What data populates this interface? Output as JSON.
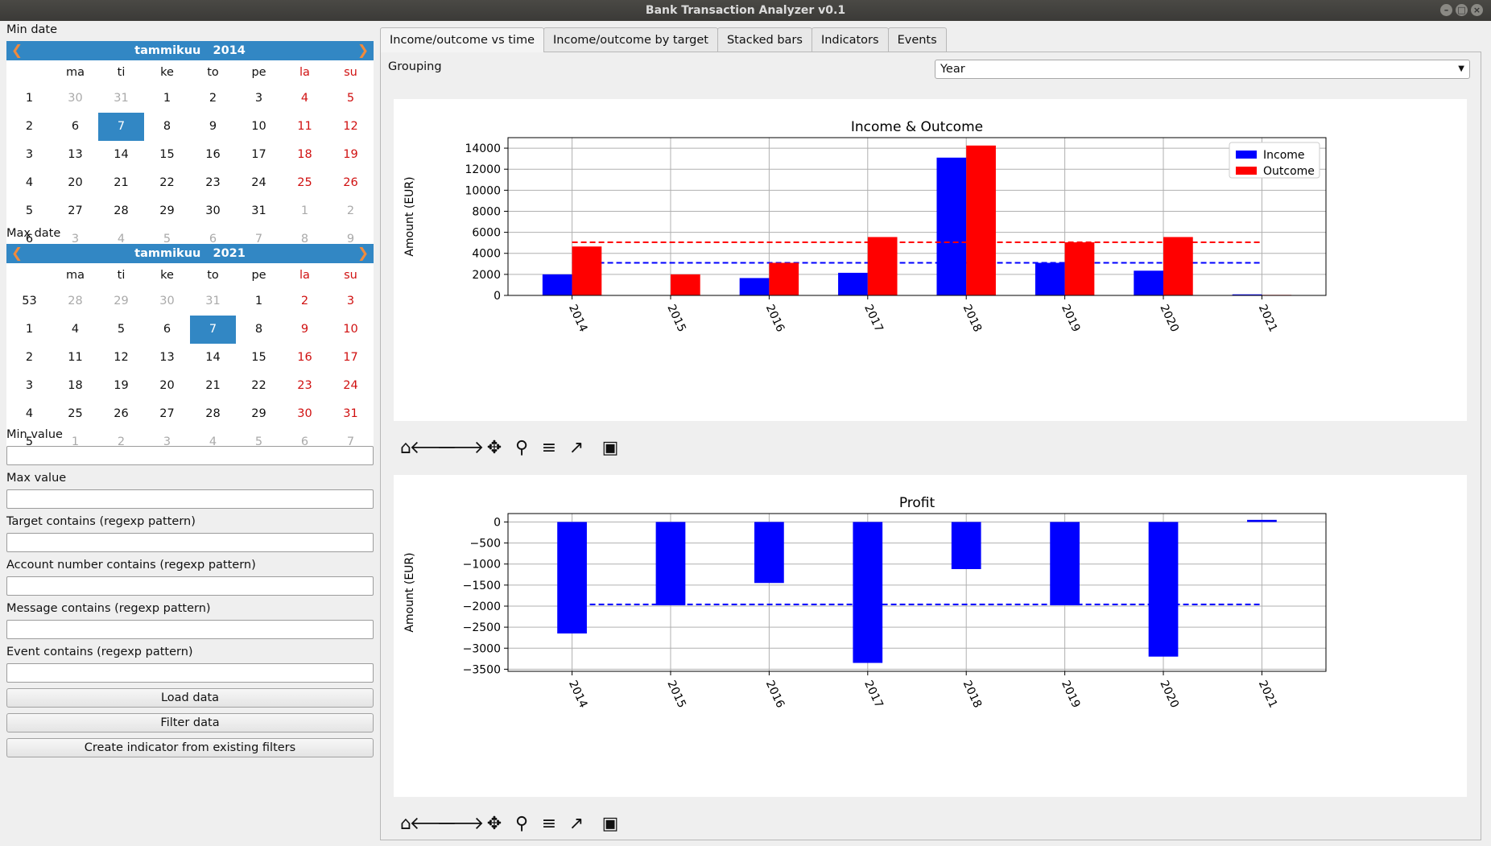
{
  "window": {
    "title": "Bank Transaction Analyzer v0.1"
  },
  "left": {
    "min_date_label": "Min date",
    "max_date_label": "Max date",
    "min_value_label": "Min value",
    "max_value_label": "Max value",
    "target_label": "Target contains (regexp pattern)",
    "account_label": "Account number contains (regexp pattern)",
    "message_label": "Message contains (regexp pattern)",
    "event_label": "Event contains (regexp pattern)",
    "load_button": "Load data",
    "filter_button": "Filter data",
    "create_indicator_button": "Create indicator from existing filters"
  },
  "calendars": {
    "min": {
      "month": "tammikuu",
      "year": "2014",
      "weekday_headers": [
        "ma",
        "ti",
        "ke",
        "to",
        "pe",
        "la",
        "su"
      ],
      "weeks": [
        {
          "wk": "1",
          "days": [
            [
              "30",
              "dim"
            ],
            [
              "31",
              "dim"
            ],
            [
              "1",
              "wk"
            ],
            [
              "2",
              "wk"
            ],
            [
              "3",
              "wk"
            ],
            [
              "4",
              "we"
            ],
            [
              "5",
              "we"
            ]
          ]
        },
        {
          "wk": "2",
          "days": [
            [
              "6",
              "wk"
            ],
            [
              "7",
              "sel"
            ],
            [
              "8",
              "wk"
            ],
            [
              "9",
              "wk"
            ],
            [
              "10",
              "wk"
            ],
            [
              "11",
              "we"
            ],
            [
              "12",
              "we"
            ]
          ]
        },
        {
          "wk": "3",
          "days": [
            [
              "13",
              "wk"
            ],
            [
              "14",
              "wk"
            ],
            [
              "15",
              "wk"
            ],
            [
              "16",
              "wk"
            ],
            [
              "17",
              "wk"
            ],
            [
              "18",
              "we"
            ],
            [
              "19",
              "we"
            ]
          ]
        },
        {
          "wk": "4",
          "days": [
            [
              "20",
              "wk"
            ],
            [
              "21",
              "wk"
            ],
            [
              "22",
              "wk"
            ],
            [
              "23",
              "wk"
            ],
            [
              "24",
              "wk"
            ],
            [
              "25",
              "we"
            ],
            [
              "26",
              "we"
            ]
          ]
        },
        {
          "wk": "5",
          "days": [
            [
              "27",
              "wk"
            ],
            [
              "28",
              "wk"
            ],
            [
              "29",
              "wk"
            ],
            [
              "30",
              "wk"
            ],
            [
              "31",
              "wk"
            ],
            [
              "1",
              "dim"
            ],
            [
              "2",
              "dim"
            ]
          ]
        },
        {
          "wk": "6",
          "days": [
            [
              "3",
              "dim"
            ],
            [
              "4",
              "dim"
            ],
            [
              "5",
              "dim"
            ],
            [
              "6",
              "dim"
            ],
            [
              "7",
              "dim"
            ],
            [
              "8",
              "dim"
            ],
            [
              "9",
              "dim"
            ]
          ]
        }
      ]
    },
    "max": {
      "month": "tammikuu",
      "year": "2021",
      "weekday_headers": [
        "ma",
        "ti",
        "ke",
        "to",
        "pe",
        "la",
        "su"
      ],
      "weeks": [
        {
          "wk": "53",
          "days": [
            [
              "28",
              "dim"
            ],
            [
              "29",
              "dim"
            ],
            [
              "30",
              "dim"
            ],
            [
              "31",
              "dim"
            ],
            [
              "1",
              "wk"
            ],
            [
              "2",
              "we"
            ],
            [
              "3",
              "we"
            ]
          ]
        },
        {
          "wk": "1",
          "days": [
            [
              "4",
              "wk"
            ],
            [
              "5",
              "wk"
            ],
            [
              "6",
              "wk"
            ],
            [
              "7",
              "sel"
            ],
            [
              "8",
              "wk"
            ],
            [
              "9",
              "we"
            ],
            [
              "10",
              "we"
            ]
          ]
        },
        {
          "wk": "2",
          "days": [
            [
              "11",
              "wk"
            ],
            [
              "12",
              "wk"
            ],
            [
              "13",
              "wk"
            ],
            [
              "14",
              "wk"
            ],
            [
              "15",
              "wk"
            ],
            [
              "16",
              "we"
            ],
            [
              "17",
              "we"
            ]
          ]
        },
        {
          "wk": "3",
          "days": [
            [
              "18",
              "wk"
            ],
            [
              "19",
              "wk"
            ],
            [
              "20",
              "wk"
            ],
            [
              "21",
              "wk"
            ],
            [
              "22",
              "wk"
            ],
            [
              "23",
              "we"
            ],
            [
              "24",
              "we"
            ]
          ]
        },
        {
          "wk": "4",
          "days": [
            [
              "25",
              "wk"
            ],
            [
              "26",
              "wk"
            ],
            [
              "27",
              "wk"
            ],
            [
              "28",
              "wk"
            ],
            [
              "29",
              "wk"
            ],
            [
              "30",
              "we"
            ],
            [
              "31",
              "we"
            ]
          ]
        },
        {
          "wk": "5",
          "days": [
            [
              "1",
              "dim"
            ],
            [
              "2",
              "dim"
            ],
            [
              "3",
              "dim"
            ],
            [
              "4",
              "dim"
            ],
            [
              "5",
              "dim"
            ],
            [
              "6",
              "dim"
            ],
            [
              "7",
              "dim"
            ]
          ]
        }
      ]
    }
  },
  "tabs": [
    "Income/outcome vs time",
    "Income/outcome by target",
    "Stacked bars",
    "Indicators",
    "Events"
  ],
  "active_tab": 0,
  "grouping": {
    "label": "Grouping",
    "value": "Year"
  },
  "toolbar_icons": [
    "home-icon",
    "back-arrow-icon",
    "forward-arrow-icon",
    "pan-icon",
    "zoom-icon",
    "subplots-config-icon",
    "edit-axis-icon",
    "save-icon"
  ],
  "colors": {
    "income": "#0000ff",
    "outcome": "#ff0000",
    "selection": "#3287c4"
  },
  "chart_data": [
    {
      "type": "bar",
      "title": "Income & Outcome",
      "xlabel": "",
      "ylabel": "Amount (EUR)",
      "categories": [
        "2014",
        "2015",
        "2016",
        "2017",
        "2018",
        "2019",
        "2020",
        "2021"
      ],
      "series": [
        {
          "name": "Income",
          "color": "#0000ff",
          "values": [
            2000,
            0,
            1650,
            2150,
            13100,
            3100,
            2350,
            100
          ],
          "mean": 3100
        },
        {
          "name": "Outcome",
          "color": "#ff0000",
          "values": [
            4650,
            2000,
            3100,
            5550,
            14250,
            5050,
            5550,
            50
          ],
          "mean": 5050
        }
      ],
      "ylim": [
        0,
        15000
      ],
      "yticks": [
        0,
        2000,
        4000,
        6000,
        8000,
        10000,
        12000,
        14000
      ],
      "grid": true,
      "legend": "top-right"
    },
    {
      "type": "bar",
      "title": "Profit",
      "xlabel": "",
      "ylabel": "Amount (EUR)",
      "categories": [
        "2014",
        "2015",
        "2016",
        "2017",
        "2018",
        "2019",
        "2020",
        "2021"
      ],
      "series": [
        {
          "color": "#0000ff",
          "values": [
            -2650,
            -1980,
            -1450,
            -3350,
            -1120,
            -1980,
            -3200,
            50
          ],
          "mean": -1960
        }
      ],
      "ylim": [
        -3550,
        200
      ],
      "yticks": [
        0,
        -500,
        -1000,
        -1500,
        -2000,
        -2500,
        -3000,
        -3500
      ],
      "grid": true
    }
  ]
}
